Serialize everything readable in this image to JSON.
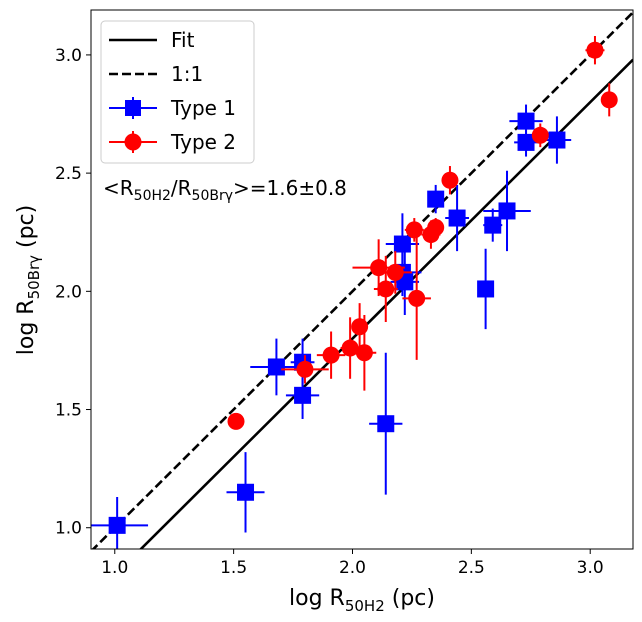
{
  "chart_data": {
    "type": "scatter",
    "xlabel": {
      "base": "log R",
      "sub": "50H2",
      "unit": " (pc)"
    },
    "ylabel": {
      "base": "log R",
      "sub": "50Brγ",
      "unit": " (pc)"
    },
    "xlim": [
      0.9,
      3.18
    ],
    "ylim": [
      0.91,
      3.19
    ],
    "xticks": [
      1.0,
      1.5,
      2.0,
      2.5,
      3.0
    ],
    "yticks": [
      1.0,
      1.5,
      2.0,
      2.5,
      3.0
    ],
    "xtick_labels": [
      "1.0",
      "1.5",
      "2.0",
      "2.5",
      "3.0"
    ],
    "ytick_labels": [
      "1.0",
      "1.5",
      "2.0",
      "2.5",
      "3.0"
    ],
    "annotation": {
      "pre": "<R",
      "sub1": "50H2",
      "mid": "/R",
      "sub2": "50Brγ",
      "post": ">=1.6±0.8"
    },
    "legend": {
      "position": "top-left",
      "entries": [
        {
          "label": "Fit",
          "style": "solid-line"
        },
        {
          "label": "1:1",
          "style": "dashed-line"
        },
        {
          "label": "Type 1",
          "style": "blue-square"
        },
        {
          "label": "Type 2",
          "style": "red-circle"
        }
      ]
    },
    "colors": {
      "type1": "#0000ff",
      "type2": "#ff0000",
      "line": "#000000"
    },
    "fit_line": {
      "slope": 1.0,
      "intercept": -0.2
    },
    "one_to_one": {
      "slope": 1.0,
      "intercept": 0.0
    },
    "series": [
      {
        "name": "Type 1",
        "marker": "square",
        "points": [
          {
            "x": 1.01,
            "y": 1.01,
            "xerr": 0.13,
            "yerr": 0.12
          },
          {
            "x": 1.55,
            "y": 1.15,
            "xerr": 0.08,
            "yerr": 0.17
          },
          {
            "x": 1.68,
            "y": 1.68,
            "xerr": 0.11,
            "yerr": 0.12
          },
          {
            "x": 1.79,
            "y": 1.7,
            "xerr": 0.05,
            "yerr": 0.1
          },
          {
            "x": 1.79,
            "y": 1.56,
            "xerr": 0.07,
            "yerr": 0.1
          },
          {
            "x": 2.14,
            "y": 1.44,
            "xerr": 0.07,
            "yerr": 0.3
          },
          {
            "x": 2.21,
            "y": 2.2,
            "xerr": 0.07,
            "yerr": 0.13
          },
          {
            "x": 2.21,
            "y": 2.08,
            "xerr": 0.08,
            "yerr": 0.1
          },
          {
            "x": 2.22,
            "y": 2.04,
            "xerr": 0.06,
            "yerr": 0.14
          },
          {
            "x": 2.35,
            "y": 2.39,
            "xerr": 0.03,
            "yerr": 0.06
          },
          {
            "x": 2.44,
            "y": 2.31,
            "xerr": 0.05,
            "yerr": 0.14
          },
          {
            "x": 2.56,
            "y": 2.01,
            "xerr": 0.03,
            "yerr": 0.17
          },
          {
            "x": 2.59,
            "y": 2.28,
            "xerr": 0.04,
            "yerr": 0.07
          },
          {
            "x": 2.65,
            "y": 2.34,
            "xerr": 0.1,
            "yerr": 0.17
          },
          {
            "x": 2.73,
            "y": 2.72,
            "xerr": 0.07,
            "yerr": 0.07
          },
          {
            "x": 2.73,
            "y": 2.63,
            "xerr": 0.05,
            "yerr": 0.06
          },
          {
            "x": 2.86,
            "y": 2.64,
            "xerr": 0.06,
            "yerr": 0.1
          }
        ]
      },
      {
        "name": "Type 2",
        "marker": "circle",
        "points": [
          {
            "x": 1.51,
            "y": 1.45,
            "xerr": 0.02,
            "yerr": 0.03
          },
          {
            "x": 1.8,
            "y": 1.67,
            "xerr": 0.1,
            "yerr": 0.06
          },
          {
            "x": 1.91,
            "y": 1.73,
            "xerr": 0.06,
            "yerr": 0.1
          },
          {
            "x": 1.99,
            "y": 1.76,
            "xerr": 0.04,
            "yerr": 0.13
          },
          {
            "x": 2.03,
            "y": 1.85,
            "xerr": 0.03,
            "yerr": 0.1
          },
          {
            "x": 2.05,
            "y": 1.74,
            "xerr": 0.05,
            "yerr": 0.16
          },
          {
            "x": 2.11,
            "y": 2.1,
            "xerr": 0.11,
            "yerr": 0.12
          },
          {
            "x": 2.14,
            "y": 2.01,
            "xerr": 0.05,
            "yerr": 0.14
          },
          {
            "x": 2.18,
            "y": 2.08,
            "xerr": 0.07,
            "yerr": 0.09
          },
          {
            "x": 2.26,
            "y": 2.26,
            "xerr": 0.04,
            "yerr": 0.05
          },
          {
            "x": 2.27,
            "y": 1.97,
            "xerr": 0.06,
            "yerr": 0.26
          },
          {
            "x": 2.33,
            "y": 2.24,
            "xerr": 0.04,
            "yerr": 0.06
          },
          {
            "x": 2.35,
            "y": 2.27,
            "xerr": 0.02,
            "yerr": 0.04
          },
          {
            "x": 2.41,
            "y": 2.47,
            "xerr": 0.03,
            "yerr": 0.06
          },
          {
            "x": 2.79,
            "y": 2.66,
            "xerr": 0.03,
            "yerr": 0.05
          },
          {
            "x": 3.02,
            "y": 3.02,
            "xerr": 0.04,
            "yerr": 0.06
          },
          {
            "x": 3.08,
            "y": 2.81,
            "xerr": 0.01,
            "yerr": 0.07
          }
        ]
      }
    ]
  }
}
